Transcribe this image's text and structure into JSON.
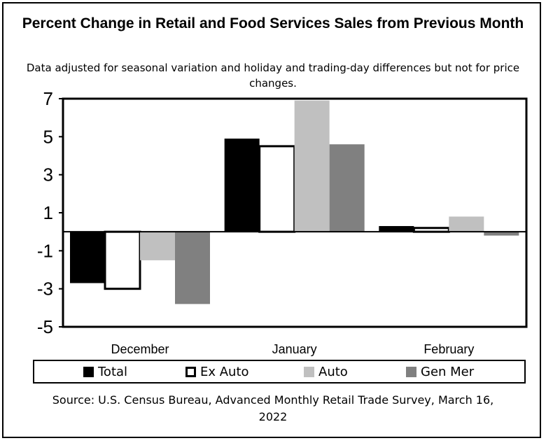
{
  "chart_data": {
    "type": "bar",
    "title": "Percent Change in Retail and Food Services Sales from Previous Month",
    "subtitle": "Data adjusted for seasonal variation and holiday and trading-day differences but not for price changes.",
    "categories": [
      "December",
      "January",
      "February"
    ],
    "series": [
      {
        "name": "Total",
        "values": [
          -2.7,
          4.9,
          0.3
        ],
        "color": "#000000"
      },
      {
        "name": "Ex Auto",
        "values": [
          -3.0,
          4.5,
          0.2
        ],
        "color": "#ffffff"
      },
      {
        "name": "Auto",
        "values": [
          -1.5,
          6.9,
          0.8
        ],
        "color": "#c0c0c0"
      },
      {
        "name": "Gen Mer",
        "values": [
          -3.8,
          4.6,
          -0.2
        ],
        "color": "#808080"
      }
    ],
    "ylim": [
      -5,
      7
    ],
    "yticks": [
      "7",
      "5",
      "3",
      "1",
      "-1",
      "-3",
      "-5"
    ],
    "ytick_values": [
      7,
      5,
      3,
      1,
      -1,
      -3,
      -5
    ],
    "source": "Source: U.S. Census Bureau, Advanced Monthly Retail Trade Survey, March 16, 2022"
  }
}
